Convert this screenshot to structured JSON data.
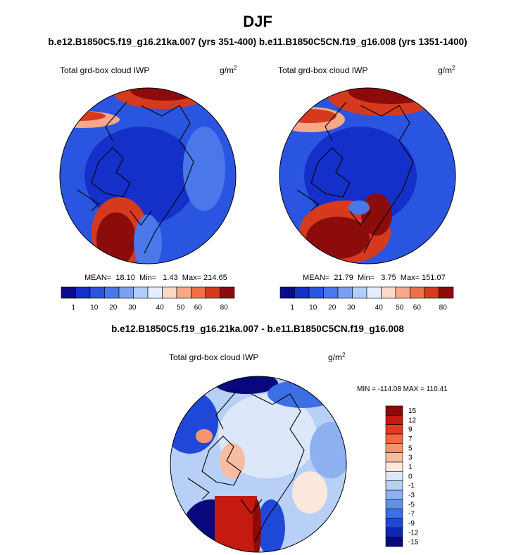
{
  "title": "DJF",
  "subtitle": "b.e12.B1850C5.f19_g16.21ka.007 (yrs 351-400) b.e11.B1850C5CN.f19_g16.008 (yrs 1351-1400)",
  "panels": [
    {
      "title": "Total grd-box cloud IWP",
      "units": {
        "base": "g/m",
        "sup": "2"
      },
      "stats": "MEAN=  18.10  Min=   1.43  Max= 214.65"
    },
    {
      "title": "Total grd-box cloud IWP",
      "units": {
        "base": "g/m",
        "sup": "2"
      },
      "stats": "MEAN=  21.79  Min=   3.75  Max= 151.07"
    }
  ],
  "colorbar": {
    "colors": [
      "#0a0a8c",
      "#1530c8",
      "#2a55e0",
      "#4a78ea",
      "#7aa0f0",
      "#b0cdf8",
      "#e4eefc",
      "#fbd8c8",
      "#f6a888",
      "#f07048",
      "#d63a1e",
      "#8c0c0c"
    ],
    "labels": [
      "1",
      "10",
      "20",
      "30",
      "40",
      "50",
      "60",
      "80"
    ]
  },
  "difference": {
    "title": "b.e12.B1850C5.f19_g16.21ka.007 - b.e11.B1850C5CN.f19_g16.008",
    "panel_title": "Total grd-box cloud IWP",
    "units": {
      "base": "g/m",
      "sup": "2"
    },
    "stats": "MIN = -114.08 MAX = 110.41",
    "colorbar": {
      "colors": [
        "#8b0a0a",
        "#c41a10",
        "#e03c1c",
        "#f0683c",
        "#f59470",
        "#f8bda0",
        "#fde8dc",
        "#dce8fa",
        "#b8d0f6",
        "#8cb0f0",
        "#6090ea",
        "#3c6ee4",
        "#2048d8",
        "#0f28b4",
        "#08087c"
      ],
      "labels": [
        "15",
        "12",
        "9",
        "7",
        "5",
        "3",
        "1",
        "0",
        "-1",
        "-3",
        "-5",
        "-7",
        "-9",
        "-12",
        "-15"
      ]
    }
  }
}
